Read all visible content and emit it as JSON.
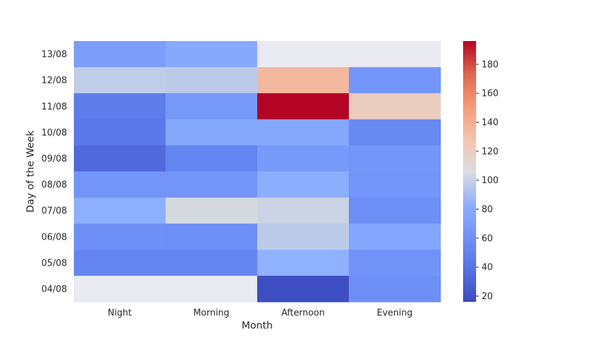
{
  "chart_data": {
    "type": "heatmap",
    "title": "",
    "xlabel": "Month",
    "ylabel": "Day of the Week",
    "x_categories": [
      "Night",
      "Morning",
      "Afternoon",
      "Evening"
    ],
    "y_categories": [
      "13/08",
      "12/08",
      "11/08",
      "10/08",
      "09/08",
      "08/08",
      "07/08",
      "06/08",
      "05/08",
      "04/08"
    ],
    "values": [
      [
        70,
        78,
        null,
        null
      ],
      [
        98,
        97,
        135,
        64
      ],
      [
        46,
        66,
        196,
        120
      ],
      [
        43,
        77,
        77,
        55
      ],
      [
        34,
        51,
        67,
        64
      ],
      [
        63,
        63,
        82,
        63
      ],
      [
        83,
        104,
        101,
        58
      ],
      [
        59,
        58,
        97,
        76
      ],
      [
        52,
        52,
        84,
        62
      ],
      [
        null,
        null,
        17,
        58
      ]
    ],
    "colormap": "coolwarm",
    "vmin": 16,
    "vmax": 196,
    "missing_color": "#eaeaf2",
    "colorbar": {
      "ticks": [
        "20",
        "40",
        "60",
        "80",
        "100",
        "120",
        "140",
        "160",
        "180"
      ]
    }
  }
}
